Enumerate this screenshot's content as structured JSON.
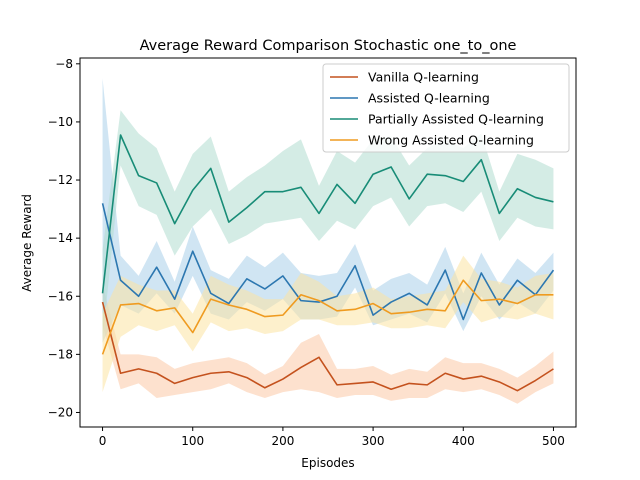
{
  "chart_data": {
    "type": "line",
    "title": "Average Reward Comparison Stochastic one_to_one",
    "xlabel": "Episodes",
    "ylabel": "Average Reward",
    "xlim": [
      -25,
      525
    ],
    "ylim": [
      -20.5,
      -7.8
    ],
    "xticks": [
      0,
      100,
      200,
      300,
      400,
      500
    ],
    "yticks": [
      -20,
      -18,
      -16,
      -14,
      -12,
      -10,
      -8
    ],
    "grid": false,
    "legend_position": "top-right",
    "x": [
      0,
      20,
      40,
      60,
      80,
      100,
      120,
      140,
      160,
      180,
      200,
      220,
      240,
      260,
      280,
      300,
      320,
      340,
      360,
      380,
      400,
      420,
      440,
      460,
      480,
      500
    ],
    "series": [
      {
        "name": "Vanilla Q-learning",
        "color": "#c4521e",
        "band_color": "#fbc9a6",
        "values": [
          -16.2,
          -18.65,
          -18.5,
          -18.65,
          -19.0,
          -18.8,
          -18.65,
          -18.6,
          -18.8,
          -19.15,
          -18.85,
          -18.45,
          -18.1,
          -19.05,
          -19.0,
          -18.95,
          -19.2,
          -19.0,
          -19.05,
          -18.65,
          -18.85,
          -18.75,
          -18.95,
          -19.25,
          -18.9,
          -18.5
        ],
        "lower": [
          -17.0,
          -19.2,
          -19.0,
          -19.5,
          -19.4,
          -19.3,
          -19.2,
          -19.0,
          -19.3,
          -19.5,
          -19.3,
          -19.2,
          -19.3,
          -19.5,
          -19.4,
          -19.4,
          -19.6,
          -19.5,
          -19.5,
          -19.2,
          -19.3,
          -19.2,
          -19.4,
          -19.7,
          -19.3,
          -19.0
        ],
        "upper": [
          -15.6,
          -18.0,
          -18.0,
          -18.1,
          -18.5,
          -18.3,
          -18.2,
          -18.1,
          -18.3,
          -18.7,
          -18.4,
          -17.6,
          -17.3,
          -18.5,
          -18.5,
          -18.4,
          -18.7,
          -18.5,
          -18.6,
          -18.1,
          -18.3,
          -18.3,
          -18.5,
          -18.8,
          -18.4,
          -17.9
        ]
      },
      {
        "name": "Assisted Q-learning",
        "color": "#2c77b0",
        "band_color": "#aacfe9",
        "values": [
          -12.8,
          -15.45,
          -16.0,
          -15.0,
          -16.1,
          -14.45,
          -15.9,
          -16.25,
          -15.4,
          -15.75,
          -15.3,
          -16.15,
          -16.2,
          -16.0,
          -14.95,
          -16.65,
          -16.2,
          -15.9,
          -16.3,
          -15.1,
          -16.8,
          -15.2,
          -16.3,
          -15.45,
          -15.95,
          -15.1
        ],
        "lower": [
          -17.6,
          -16.3,
          -16.6,
          -15.9,
          -16.6,
          -15.3,
          -16.6,
          -16.8,
          -16.2,
          -16.5,
          -16.1,
          -16.8,
          -16.8,
          -16.7,
          -15.7,
          -17.0,
          -16.8,
          -16.6,
          -16.9,
          -15.9,
          -17.2,
          -16.0,
          -16.8,
          -16.2,
          -16.6,
          -15.8
        ],
        "upper": [
          -8.5,
          -14.6,
          -15.3,
          -14.1,
          -15.5,
          -13.6,
          -15.1,
          -15.4,
          -14.6,
          -15.0,
          -14.5,
          -15.2,
          -15.3,
          -15.2,
          -14.2,
          -15.8,
          -15.4,
          -15.2,
          -15.6,
          -14.3,
          -15.9,
          -14.5,
          -15.6,
          -14.7,
          -15.2,
          -14.5
        ]
      },
      {
        "name": "Partially Assisted Q-learning",
        "color": "#188c77",
        "band_color": "#b0ddcf",
        "values": [
          -15.9,
          -10.45,
          -11.85,
          -12.1,
          -13.5,
          -12.35,
          -11.6,
          -13.45,
          -12.95,
          -12.4,
          -12.4,
          -12.25,
          -13.15,
          -12.15,
          -12.8,
          -11.8,
          -11.55,
          -12.65,
          -11.8,
          -11.85,
          -12.05,
          -11.3,
          -13.15,
          -12.3,
          -12.6,
          -12.75
        ],
        "lower": [
          -17.5,
          -11.5,
          -12.9,
          -13.2,
          -14.6,
          -13.6,
          -13.0,
          -14.2,
          -13.9,
          -13.5,
          -13.4,
          -13.3,
          -14.1,
          -13.4,
          -13.7,
          -12.9,
          -12.6,
          -13.6,
          -12.9,
          -12.8,
          -13.1,
          -12.4,
          -14.1,
          -13.3,
          -13.6,
          -13.7
        ],
        "upper": [
          -14.4,
          -9.6,
          -10.4,
          -10.9,
          -12.4,
          -11.1,
          -10.5,
          -12.4,
          -11.9,
          -11.5,
          -11.0,
          -10.6,
          -12.2,
          -11.0,
          -11.4,
          -10.6,
          -10.5,
          -11.5,
          -10.9,
          -10.6,
          -10.9,
          -10.4,
          -12.4,
          -11.1,
          -11.3,
          -11.6
        ]
      },
      {
        "name": "Wrong Assisted Q-learning",
        "color": "#ef9b20",
        "band_color": "#fbe3a3",
        "values": [
          -18.0,
          -16.3,
          -16.25,
          -16.5,
          -16.4,
          -17.25,
          -16.1,
          -16.3,
          -16.45,
          -16.7,
          -16.65,
          -15.95,
          -16.15,
          -16.5,
          -16.45,
          -16.25,
          -16.6,
          -16.55,
          -16.45,
          -16.5,
          -15.45,
          -16.15,
          -16.1,
          -16.25,
          -15.95,
          -15.95
        ],
        "lower": [
          -19.3,
          -17.4,
          -17.0,
          -17.2,
          -17.0,
          -17.9,
          -16.9,
          -17.2,
          -17.1,
          -17.3,
          -17.2,
          -16.8,
          -16.8,
          -17.0,
          -17.0,
          -16.9,
          -17.1,
          -17.1,
          -17.0,
          -17.1,
          -16.2,
          -16.9,
          -16.7,
          -16.8,
          -16.6,
          -16.8
        ],
        "upper": [
          -16.6,
          -15.3,
          -15.6,
          -15.8,
          -15.8,
          -16.6,
          -15.3,
          -15.6,
          -15.8,
          -16.1,
          -16.1,
          -15.2,
          -15.5,
          -16.0,
          -15.9,
          -15.7,
          -16.1,
          -16.0,
          -15.9,
          -15.8,
          -14.6,
          -15.4,
          -15.5,
          -15.7,
          -15.3,
          -15.2
        ]
      }
    ]
  }
}
